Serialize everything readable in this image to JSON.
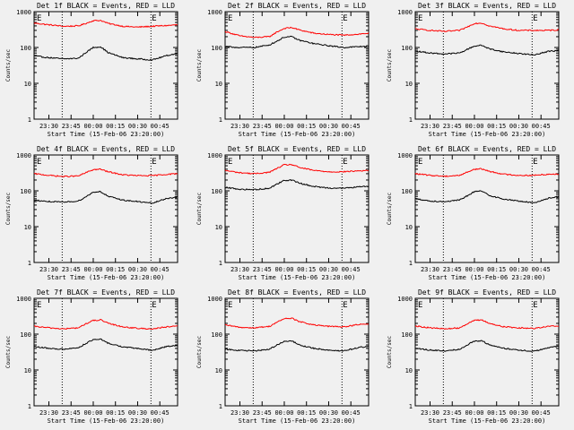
{
  "chart_data": [
    {
      "type": "line",
      "title": "Det 1f BLACK = Events, RED = LLD",
      "ylabel": "Counts/sec",
      "xlabel": "Start Time (15-Feb-06 23:20:00)",
      "yscale": "log",
      "ylim": [
        1,
        1000
      ],
      "xlim": [
        "23:20",
        "00:57"
      ],
      "xticks": [
        "23:30",
        "23:45",
        "00:00",
        "00:15",
        "00:30",
        "00:45"
      ],
      "yticks": [
        "1",
        "10",
        "100",
        "1000"
      ],
      "vlines": [
        "23:39",
        "00:39"
      ],
      "marker": "E",
      "series": [
        {
          "color": "#ff0000",
          "x": [
            "23:20",
            "23:30",
            "23:40",
            "23:50",
            "23:55",
            "00:00",
            "00:05",
            "00:10",
            "00:20",
            "00:30",
            "00:40",
            "00:50",
            "00:57"
          ],
          "values": [
            480,
            430,
            390,
            400,
            470,
            560,
            570,
            470,
            390,
            370,
            390,
            410,
            430
          ]
        },
        {
          "color": "#000000",
          "x": [
            "23:20",
            "23:30",
            "23:40",
            "23:50",
            "23:55",
            "00:00",
            "00:05",
            "00:10",
            "00:20",
            "00:30",
            "00:40",
            "00:50",
            "00:57"
          ],
          "values": [
            58,
            52,
            48,
            50,
            72,
            100,
            105,
            72,
            52,
            48,
            45,
            60,
            68
          ]
        }
      ]
    },
    {
      "type": "line",
      "title": "Det 2f BLACK = Events, RED = LLD",
      "ylabel": "Counts/sec",
      "xlabel": "Start Time (15-Feb-06 23:20:00)",
      "yscale": "log",
      "ylim": [
        1,
        1000
      ],
      "xlim": [
        "23:20",
        "00:57"
      ],
      "xticks": [
        "23:30",
        "23:45",
        "00:00",
        "00:15",
        "00:30",
        "00:45"
      ],
      "yticks": [
        "1",
        "10",
        "100",
        "1000"
      ],
      "vlines": [
        "23:39",
        "00:39"
      ],
      "marker": "E",
      "series": [
        {
          "color": "#ff0000",
          "x": [
            "23:20",
            "23:30",
            "23:40",
            "23:50",
            "23:55",
            "00:00",
            "00:05",
            "00:10",
            "00:20",
            "00:30",
            "00:40",
            "00:50",
            "00:57"
          ],
          "values": [
            280,
            210,
            190,
            200,
            270,
            340,
            360,
            310,
            250,
            230,
            220,
            235,
            250
          ]
        },
        {
          "color": "#000000",
          "x": [
            "23:20",
            "23:30",
            "23:40",
            "23:50",
            "23:55",
            "00:00",
            "00:05",
            "00:10",
            "00:20",
            "00:30",
            "00:40",
            "00:50",
            "00:57"
          ],
          "values": [
            105,
            100,
            100,
            118,
            150,
            195,
            200,
            160,
            128,
            112,
            100,
            105,
            110
          ]
        }
      ]
    },
    {
      "type": "line",
      "title": "Det 3f BLACK = Events, RED = LLD",
      "ylabel": "Counts/sec",
      "xlabel": "Start Time (15-Feb-06 23:20:00)",
      "yscale": "log",
      "ylim": [
        1,
        1000
      ],
      "xlim": [
        "23:20",
        "00:57"
      ],
      "xticks": [
        "23:30",
        "23:45",
        "00:00",
        "00:15",
        "00:30",
        "00:45"
      ],
      "yticks": [
        "1",
        "10",
        "100",
        "1000"
      ],
      "vlines": [
        "23:39",
        "00:39"
      ],
      "marker": "E",
      "series": [
        {
          "color": "#ff0000",
          "x": [
            "23:20",
            "23:30",
            "23:40",
            "23:50",
            "23:55",
            "00:00",
            "00:05",
            "00:10",
            "00:20",
            "00:30",
            "00:40",
            "00:50",
            "00:57"
          ],
          "values": [
            330,
            300,
            280,
            300,
            370,
            470,
            480,
            400,
            330,
            300,
            300,
            300,
            310
          ]
        },
        {
          "color": "#000000",
          "x": [
            "23:20",
            "23:30",
            "23:40",
            "23:50",
            "23:55",
            "00:00",
            "00:05",
            "00:10",
            "00:20",
            "00:30",
            "00:40",
            "00:50",
            "00:57"
          ],
          "values": [
            80,
            70,
            66,
            70,
            88,
            110,
            115,
            92,
            75,
            68,
            62,
            78,
            82
          ]
        }
      ]
    },
    {
      "type": "line",
      "title": "Det 4f BLACK = Events, RED = LLD",
      "ylabel": "Counts/sec",
      "xlabel": "Start Time (15-Feb-06 23:20:00)",
      "yscale": "log",
      "ylim": [
        1,
        1000
      ],
      "xlim": [
        "23:20",
        "00:57"
      ],
      "xticks": [
        "23:30",
        "23:45",
        "00:00",
        "00:15",
        "00:30",
        "00:45"
      ],
      "yticks": [
        "1",
        "10",
        "100",
        "1000"
      ],
      "vlines": [
        "23:39",
        "00:39"
      ],
      "marker": "E",
      "series": [
        {
          "color": "#ff0000",
          "x": [
            "23:20",
            "23:30",
            "23:40",
            "23:50",
            "23:55",
            "00:00",
            "00:05",
            "00:10",
            "00:20",
            "00:30",
            "00:40",
            "00:50",
            "00:57"
          ],
          "values": [
            300,
            270,
            250,
            260,
            320,
            390,
            400,
            340,
            280,
            265,
            265,
            290,
            300
          ]
        },
        {
          "color": "#000000",
          "x": [
            "23:20",
            "23:30",
            "23:40",
            "23:50",
            "23:55",
            "00:00",
            "00:05",
            "00:10",
            "00:20",
            "00:30",
            "00:40",
            "00:50",
            "00:57"
          ],
          "values": [
            55,
            50,
            48,
            52,
            68,
            92,
            95,
            70,
            55,
            50,
            45,
            62,
            66
          ]
        }
      ]
    },
    {
      "type": "line",
      "title": "Det 5f BLACK = Events, RED = LLD",
      "ylabel": "Counts/sec",
      "xlabel": "Start Time (15-Feb-06 23:20:00)",
      "yscale": "log",
      "ylim": [
        1,
        1000
      ],
      "xlim": [
        "23:20",
        "00:57"
      ],
      "xticks": [
        "23:30",
        "23:45",
        "00:00",
        "00:15",
        "00:30",
        "00:45"
      ],
      "yticks": [
        "1",
        "10",
        "100",
        "1000"
      ],
      "vlines": [
        "23:39",
        "00:39"
      ],
      "marker": "E",
      "series": [
        {
          "color": "#ff0000",
          "x": [
            "23:20",
            "23:30",
            "23:40",
            "23:50",
            "23:55",
            "00:00",
            "00:05",
            "00:10",
            "00:20",
            "00:30",
            "00:40",
            "00:50",
            "00:57"
          ],
          "values": [
            370,
            320,
            300,
            330,
            420,
            530,
            540,
            450,
            370,
            340,
            340,
            360,
            370
          ]
        },
        {
          "color": "#000000",
          "x": [
            "23:20",
            "23:30",
            "23:40",
            "23:50",
            "23:55",
            "00:00",
            "00:05",
            "00:10",
            "00:20",
            "00:30",
            "00:40",
            "00:50",
            "00:57"
          ],
          "values": [
            125,
            110,
            108,
            118,
            155,
            195,
            200,
            165,
            132,
            120,
            118,
            128,
            135
          ]
        }
      ]
    },
    {
      "type": "line",
      "title": "Det 6f BLACK = Events, RED = LLD",
      "ylabel": "Counts/sec",
      "xlabel": "Start Time (15-Feb-06 23:20:00)",
      "yscale": "log",
      "ylim": [
        1,
        1000
      ],
      "xlim": [
        "23:20",
        "00:57"
      ],
      "xticks": [
        "23:30",
        "23:45",
        "00:00",
        "00:15",
        "00:30",
        "00:45"
      ],
      "yticks": [
        "1",
        "10",
        "100",
        "1000"
      ],
      "vlines": [
        "23:39",
        "00:39"
      ],
      "marker": "E",
      "series": [
        {
          "color": "#ff0000",
          "x": [
            "23:20",
            "23:30",
            "23:40",
            "23:50",
            "23:55",
            "00:00",
            "00:05",
            "00:10",
            "00:20",
            "00:30",
            "00:40",
            "00:50",
            "00:57"
          ],
          "values": [
            300,
            270,
            255,
            270,
            330,
            400,
            410,
            350,
            290,
            270,
            270,
            290,
            295
          ]
        },
        {
          "color": "#000000",
          "x": [
            "23:20",
            "23:30",
            "23:40",
            "23:50",
            "23:55",
            "00:00",
            "00:05",
            "00:10",
            "00:20",
            "00:30",
            "00:40",
            "00:50",
            "00:57"
          ],
          "values": [
            60,
            52,
            50,
            55,
            72,
            95,
            98,
            75,
            58,
            52,
            46,
            62,
            68
          ]
        }
      ]
    },
    {
      "type": "line",
      "title": "Det 7f BLACK = Events, RED = LLD",
      "ylabel": "Counts/sec",
      "xlabel": "Start Time (15-Feb-06 23:20:00)",
      "yscale": "log",
      "ylim": [
        1,
        1000
      ],
      "xlim": [
        "23:20",
        "00:57"
      ],
      "xticks": [
        "23:30",
        "23:45",
        "00:00",
        "00:15",
        "00:30",
        "00:45"
      ],
      "yticks": [
        "1",
        "10",
        "100",
        "1000"
      ],
      "vlines": [
        "23:39",
        "00:39"
      ],
      "marker": "E",
      "series": [
        {
          "color": "#ff0000",
          "x": [
            "23:20",
            "23:30",
            "23:40",
            "23:50",
            "23:55",
            "00:00",
            "00:05",
            "00:10",
            "00:20",
            "00:30",
            "00:40",
            "00:50",
            "00:57"
          ],
          "values": [
            165,
            150,
            140,
            150,
            195,
            240,
            250,
            200,
            160,
            145,
            140,
            160,
            165
          ]
        },
        {
          "color": "#000000",
          "x": [
            "23:20",
            "23:30",
            "23:40",
            "23:50",
            "23:55",
            "00:00",
            "00:05",
            "00:10",
            "00:20",
            "00:30",
            "00:40",
            "00:50",
            "00:57"
          ],
          "values": [
            45,
            40,
            38,
            42,
            55,
            70,
            72,
            56,
            44,
            40,
            35,
            46,
            48
          ]
        }
      ]
    },
    {
      "type": "line",
      "title": "Det 8f BLACK = Events, RED = LLD",
      "ylabel": "Counts/sec",
      "xlabel": "Start Time (15-Feb-06 23:20:00)",
      "yscale": "log",
      "ylim": [
        1,
        1000
      ],
      "xlim": [
        "23:20",
        "00:57"
      ],
      "xticks": [
        "23:30",
        "23:45",
        "00:00",
        "00:15",
        "00:30",
        "00:45"
      ],
      "yticks": [
        "1",
        "10",
        "100",
        "1000"
      ],
      "vlines": [
        "23:39",
        "00:39"
      ],
      "marker": "E",
      "series": [
        {
          "color": "#ff0000",
          "x": [
            "23:20",
            "23:30",
            "23:40",
            "23:50",
            "23:55",
            "00:00",
            "00:05",
            "00:10",
            "00:20",
            "00:30",
            "00:40",
            "00:50",
            "00:57"
          ],
          "values": [
            180,
            155,
            150,
            165,
            215,
            270,
            280,
            225,
            180,
            165,
            160,
            185,
            190
          ]
        },
        {
          "color": "#000000",
          "x": [
            "23:20",
            "23:30",
            "23:40",
            "23:50",
            "23:55",
            "00:00",
            "00:05",
            "00:10",
            "00:20",
            "00:30",
            "00:40",
            "00:50",
            "00:57"
          ],
          "values": [
            38,
            35,
            34,
            38,
            50,
            62,
            65,
            50,
            40,
            36,
            34,
            42,
            46
          ]
        }
      ]
    },
    {
      "type": "line",
      "title": "Det 9f BLACK = Events, RED = LLD",
      "ylabel": "Counts/sec",
      "xlabel": "Start Time (15-Feb-06 23:20:00)",
      "yscale": "log",
      "ylim": [
        1,
        1000
      ],
      "xlim": [
        "23:20",
        "00:57"
      ],
      "xticks": [
        "23:30",
        "23:45",
        "00:00",
        "00:15",
        "00:30",
        "00:45"
      ],
      "yticks": [
        "1",
        "10",
        "100",
        "1000"
      ],
      "vlines": [
        "23:39",
        "00:39"
      ],
      "marker": "E",
      "series": [
        {
          "color": "#ff0000",
          "x": [
            "23:20",
            "23:30",
            "23:40",
            "23:50",
            "23:55",
            "00:00",
            "00:05",
            "00:10",
            "00:20",
            "00:30",
            "00:40",
            "00:50",
            "00:57"
          ],
          "values": [
            170,
            150,
            140,
            150,
            195,
            240,
            250,
            200,
            160,
            150,
            145,
            165,
            170
          ]
        },
        {
          "color": "#000000",
          "x": [
            "23:20",
            "23:30",
            "23:40",
            "23:50",
            "23:55",
            "00:00",
            "00:05",
            "00:10",
            "00:20",
            "00:30",
            "00:40",
            "00:50",
            "00:57"
          ],
          "values": [
            40,
            36,
            34,
            38,
            50,
            64,
            66,
            50,
            40,
            36,
            33,
            42,
            46
          ]
        }
      ]
    }
  ]
}
